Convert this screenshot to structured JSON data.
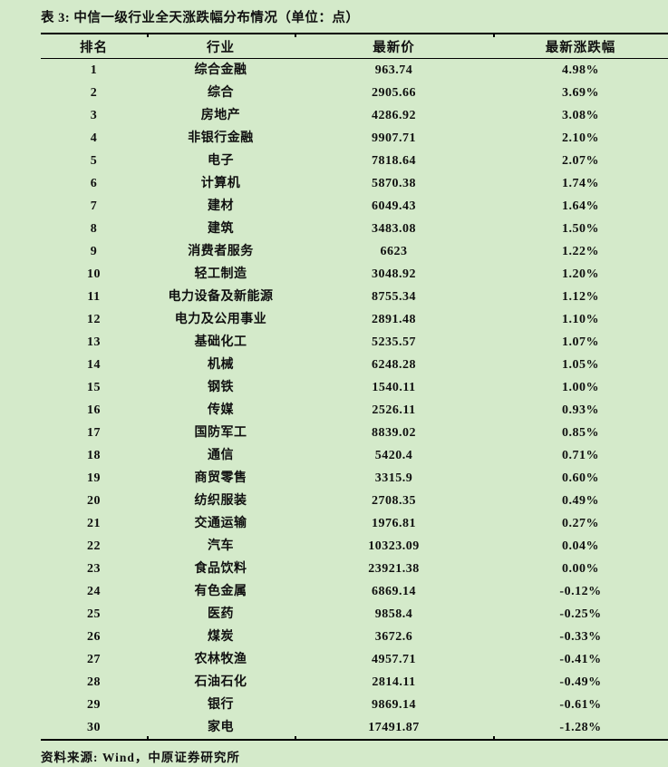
{
  "title": "表 3: 中信一级行业全天涨跌幅分布情况（单位：点）",
  "table": {
    "headers": [
      "排名",
      "行业",
      "最新价",
      "最新涨跌幅"
    ],
    "rows": [
      [
        "1",
        "综合金融",
        "963.74",
        "4.98%"
      ],
      [
        "2",
        "综合",
        "2905.66",
        "3.69%"
      ],
      [
        "3",
        "房地产",
        "4286.92",
        "3.08%"
      ],
      [
        "4",
        "非银行金融",
        "9907.71",
        "2.10%"
      ],
      [
        "5",
        "电子",
        "7818.64",
        "2.07%"
      ],
      [
        "6",
        "计算机",
        "5870.38",
        "1.74%"
      ],
      [
        "7",
        "建材",
        "6049.43",
        "1.64%"
      ],
      [
        "8",
        "建筑",
        "3483.08",
        "1.50%"
      ],
      [
        "9",
        "消费者服务",
        "6623",
        "1.22%"
      ],
      [
        "10",
        "轻工制造",
        "3048.92",
        "1.20%"
      ],
      [
        "11",
        "电力设备及新能源",
        "8755.34",
        "1.12%"
      ],
      [
        "12",
        "电力及公用事业",
        "2891.48",
        "1.10%"
      ],
      [
        "13",
        "基础化工",
        "5235.57",
        "1.07%"
      ],
      [
        "14",
        "机械",
        "6248.28",
        "1.05%"
      ],
      [
        "15",
        "钢铁",
        "1540.11",
        "1.00%"
      ],
      [
        "16",
        "传媒",
        "2526.11",
        "0.93%"
      ],
      [
        "17",
        "国防军工",
        "8839.02",
        "0.85%"
      ],
      [
        "18",
        "通信",
        "5420.4",
        "0.71%"
      ],
      [
        "19",
        "商贸零售",
        "3315.9",
        "0.60%"
      ],
      [
        "20",
        "纺织服装",
        "2708.35",
        "0.49%"
      ],
      [
        "21",
        "交通运输",
        "1976.81",
        "0.27%"
      ],
      [
        "22",
        "汽车",
        "10323.09",
        "0.04%"
      ],
      [
        "23",
        "食品饮料",
        "23921.38",
        "0.00%"
      ],
      [
        "24",
        "有色金属",
        "6869.14",
        "-0.12%"
      ],
      [
        "25",
        "医药",
        "9858.4",
        "-0.25%"
      ],
      [
        "26",
        "煤炭",
        "3672.6",
        "-0.33%"
      ],
      [
        "27",
        "农林牧渔",
        "4957.71",
        "-0.41%"
      ],
      [
        "28",
        "石油石化",
        "2814.11",
        "-0.49%"
      ],
      [
        "29",
        "银行",
        "9869.14",
        "-0.61%"
      ],
      [
        "30",
        "家电",
        "17491.87",
        "-1.28%"
      ]
    ]
  },
  "footer": {
    "source": "资料来源: Wind，中原证券研究所"
  },
  "colors": {
    "background": "#d4eaca",
    "text": "#101010",
    "rule": "#000000"
  }
}
